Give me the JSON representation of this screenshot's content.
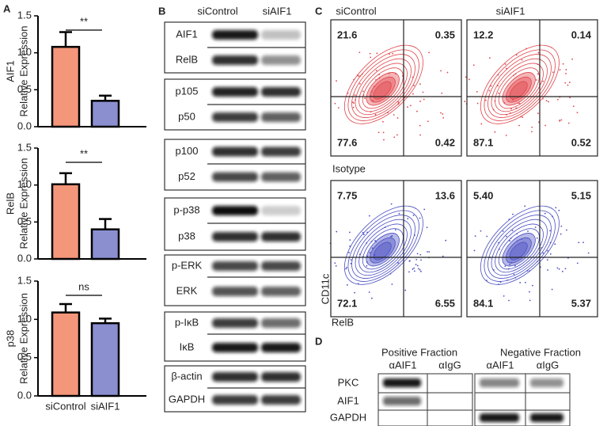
{
  "panel_labels": [
    "A",
    "B",
    "C",
    "D"
  ],
  "chart_data": [
    {
      "type": "bar",
      "ylabel": [
        "AIF1",
        "Relative Expression"
      ],
      "categories": [
        null,
        null
      ],
      "values": [
        1.08,
        0.35
      ],
      "errors": [
        0.2,
        0.07
      ],
      "colors": [
        "#f4967a",
        "#8b8fd0"
      ],
      "annotation": "**",
      "ylim": [
        0,
        1.5
      ],
      "yticks": [
        {
          "value": 0,
          "label": "0.0"
        },
        0.5,
        {
          "value": 1,
          "label": "1.0"
        },
        1.5
      ]
    },
    {
      "type": "bar",
      "ylabel": [
        "RelB",
        "Relative Expression"
      ],
      "categories": [
        null,
        null
      ],
      "values": [
        1.01,
        0.4
      ],
      "errors": [
        0.15,
        0.14
      ],
      "colors": [
        "#f4967a",
        "#8b8fd0"
      ],
      "annotation": "**",
      "ylim": [
        0,
        1.5
      ],
      "yticks": [
        {
          "value": 0,
          "label": "0.0"
        },
        0.5,
        {
          "value": 1,
          "label": "1.0"
        },
        1.5
      ]
    },
    {
      "type": "bar",
      "ylabel": [
        "p38",
        "Relative Expression"
      ],
      "categories": [
        "siControl",
        "siAIF1"
      ],
      "values": [
        1.09,
        0.95
      ],
      "errors": [
        0.11,
        0.06
      ],
      "colors": [
        "#f4967a",
        "#8b8fd0"
      ],
      "annotation": "ns",
      "ylim": [
        0,
        1.5
      ],
      "yticks": [
        {
          "value": 0,
          "label": "0.0"
        },
        0.5,
        {
          "value": 1,
          "label": "1.0"
        },
        1.5
      ]
    }
  ],
  "western_blot": {
    "columns": [
      "siControl",
      "siAIF1"
    ],
    "groups": [
      [
        "AIF1",
        "RelB"
      ],
      [
        "p105",
        "p50"
      ],
      [
        "p100",
        "p52"
      ],
      [
        "p-p38",
        "p38"
      ],
      [
        "p-ERK",
        "ERK"
      ],
      [
        "p-IκB",
        "IκB"
      ],
      [
        "β-actin",
        "GAPDH"
      ]
    ]
  },
  "flow_cytometry": {
    "columns": [
      "siControl",
      "siAIF1"
    ],
    "row_label": "Isotype",
    "xlabel": "RelB",
    "ylabel": "CD11c",
    "plots": [
      {
        "quadrants": [
          "21.6",
          "0.35",
          "77.6",
          "0.42"
        ]
      },
      {
        "quadrants": [
          "12.2",
          "0.14",
          "87.1",
          "0.52"
        ]
      },
      {
        "quadrants": [
          "7.75",
          "13.6",
          "72.1",
          "6.55"
        ]
      },
      {
        "quadrants": [
          "5.40",
          "5.15",
          "84.1",
          "5.37"
        ]
      }
    ]
  },
  "pulldown": {
    "headers": [
      "Positive Fraction",
      "Negative Fraction"
    ],
    "columns": [
      "αAIF1",
      "αIgG",
      "αAIF1",
      "αIgG"
    ],
    "rows": [
      "PKC",
      "AIF1",
      "GAPDH"
    ]
  }
}
